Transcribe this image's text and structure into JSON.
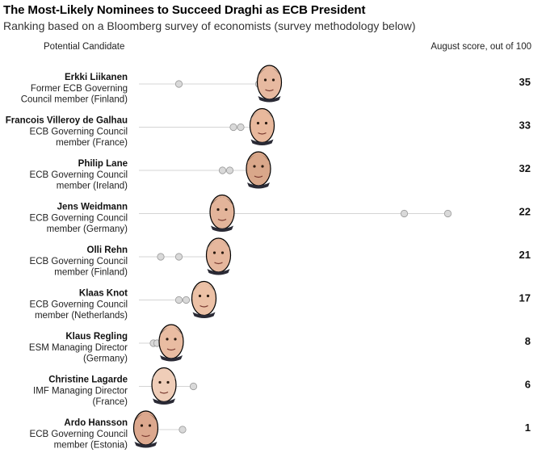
{
  "title": "The Most-Likely Nominees to Succeed Draghi as ECB President",
  "subtitle": "Ranking based on a Bloomberg survey of economists (survey methodology below)",
  "columns": {
    "left": "Potential Candidate",
    "right": "August score, out of 100"
  },
  "chart_data": {
    "type": "scatter",
    "title": "The Most-Likely Nominees to Succeed Draghi as ECB President",
    "subtitle": "Ranking based on a Bloomberg survey of economists (survey methodology below)",
    "value_label": "August score, out of 100",
    "candidates": [
      {
        "name": "Erkki Liikanen",
        "role": [
          "Former ECB Governing",
          "Council member (Finland)"
        ],
        "score": 35,
        "history": [
          11,
          33
        ]
      },
      {
        "name": "Francois Villeroy de Galhau",
        "role": [
          "ECB Governing Council",
          "member (France)"
        ],
        "score": 33,
        "history": [
          26,
          28
        ]
      },
      {
        "name": "Philip Lane",
        "role": [
          "ECB Governing Council",
          "member (Ireland)"
        ],
        "score": 32,
        "history": [
          23,
          25
        ]
      },
      {
        "name": "Jens Weidmann",
        "role": [
          "ECB Governing Council",
          "member (Germany)"
        ],
        "score": 22,
        "history": [
          73,
          85
        ]
      },
      {
        "name": "Olli Rehn",
        "role": [
          "ECB Governing Council",
          "member (Finland)"
        ],
        "score": 21,
        "history": [
          6,
          11
        ]
      },
      {
        "name": "Klaas Knot",
        "role": [
          "ECB Governing Council",
          "member (Netherlands)"
        ],
        "score": 17,
        "history": [
          11,
          13
        ]
      },
      {
        "name": "Klaus Regling",
        "role": [
          "ESM Managing Director",
          "(Germany)"
        ],
        "score": 8,
        "history": [
          4,
          5
        ]
      },
      {
        "name": "Christine Lagarde",
        "role": [
          "IMF Managing Director",
          "(France)"
        ],
        "score": 6,
        "history": [
          15
        ]
      },
      {
        "name": "Ardo Hansson",
        "role": [
          "ECB Governing Council",
          "member (Estonia)"
        ],
        "score": 1,
        "history": [
          12
        ]
      }
    ],
    "xlim": [
      0,
      100
    ],
    "colors": {
      "line": "#d4d4d4",
      "history_dot": "#d9d9d9",
      "history_stroke": "#9a9a9a"
    }
  }
}
